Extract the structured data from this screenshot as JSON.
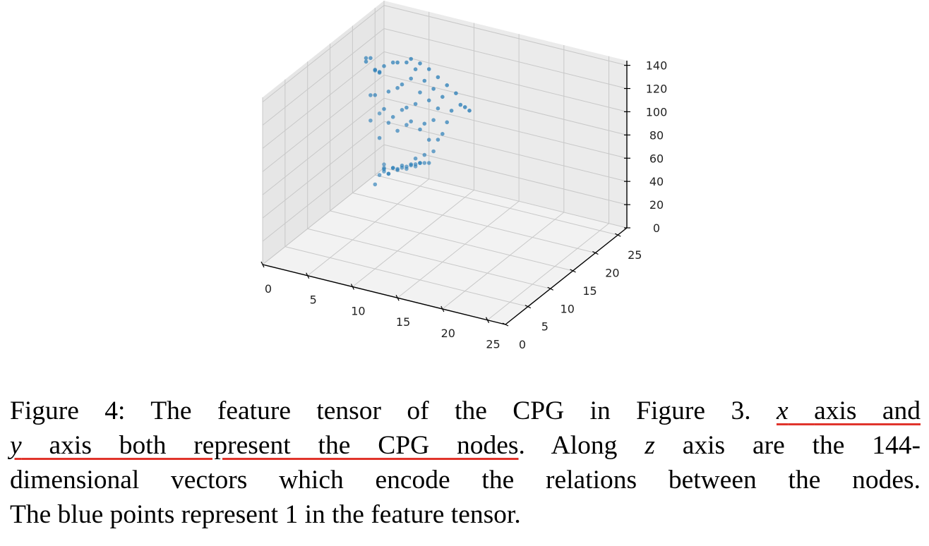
{
  "figure": {
    "caption": {
      "fig_label": "Figure 4:",
      "sentence1": "The feature tensor of the CPG in Figure 3.",
      "x_var": "x",
      "x_rest": "axis and",
      "y_var": "y",
      "y_rest": "axis both represent the CPG nodes",
      "period": ".",
      "along": "Along",
      "z_var": "z",
      "line2_end": "axis are the 144-",
      "line3": "dimensional vectors which encode the relations between the nodes.",
      "line4": "The blue points represent 1 in the feature tensor.",
      "underline_color": "#e0342c"
    }
  },
  "chart_data": {
    "type": "scatter",
    "projection": "3d",
    "title": "",
    "xlabel": "",
    "ylabel": "",
    "zlabel": "",
    "xlim": [
      0,
      27
    ],
    "ylim": [
      0,
      27
    ],
    "zlim": [
      0,
      144
    ],
    "x_ticks": [
      0,
      5,
      10,
      15,
      20,
      25
    ],
    "y_ticks": [
      0,
      5,
      10,
      15,
      20,
      25
    ],
    "z_ticks": [
      0,
      20,
      40,
      60,
      80,
      100,
      120,
      140
    ],
    "grid": true,
    "point_color": "#1f77b4",
    "series": [
      {
        "points": [
          [
            0,
            27,
            0
          ],
          [
            0,
            27,
            3
          ],
          [
            0,
            26,
            50
          ],
          [
            0,
            26,
            85
          ],
          [
            0,
            25,
            90
          ],
          [
            0,
            24,
            50
          ],
          [
            1,
            26,
            0
          ],
          [
            1,
            25,
            5
          ],
          [
            1,
            24,
            5
          ],
          [
            1,
            23,
            0
          ],
          [
            1,
            22,
            80
          ],
          [
            1,
            21,
            115
          ],
          [
            2,
            26,
            5
          ],
          [
            2,
            25,
            10
          ],
          [
            2,
            24,
            8
          ],
          [
            2,
            23,
            15
          ],
          [
            2,
            22,
            45
          ],
          [
            2,
            21,
            85
          ],
          [
            2,
            20,
            120
          ],
          [
            2,
            19,
            120
          ],
          [
            3,
            26,
            8
          ],
          [
            3,
            25,
            12
          ],
          [
            3,
            24,
            14
          ],
          [
            3,
            23,
            18
          ],
          [
            3,
            22,
            60
          ],
          [
            3,
            21,
            75
          ],
          [
            3,
            20,
            110
          ],
          [
            3,
            19,
            115
          ],
          [
            4,
            26,
            12
          ],
          [
            4,
            25,
            16
          ],
          [
            4,
            24,
            18
          ],
          [
            4,
            23,
            22
          ],
          [
            4,
            22,
            55
          ],
          [
            4,
            21,
            70
          ],
          [
            4,
            20,
            95
          ],
          [
            4,
            19,
            120
          ],
          [
            5,
            25,
            20
          ],
          [
            5,
            24,
            22
          ],
          [
            5,
            23,
            25
          ],
          [
            5,
            22,
            62
          ],
          [
            5,
            21,
            78
          ],
          [
            5,
            20,
            100
          ],
          [
            5,
            19,
            125
          ],
          [
            6,
            24,
            25
          ],
          [
            6,
            23,
            28
          ],
          [
            6,
            22,
            35
          ],
          [
            6,
            21,
            70
          ],
          [
            6,
            20,
            85
          ],
          [
            6,
            19,
            108
          ],
          [
            6,
            18,
            130
          ],
          [
            7,
            23,
            30
          ],
          [
            7,
            22,
            40
          ],
          [
            7,
            21,
            65
          ],
          [
            7,
            20,
            90
          ],
          [
            7,
            19,
            115
          ],
          [
            7,
            18,
            132
          ],
          [
            8,
            22,
            45
          ],
          [
            8,
            21,
            58
          ],
          [
            8,
            20,
            75
          ],
          [
            8,
            19,
            105
          ],
          [
            8,
            18,
            128
          ],
          [
            8,
            17,
            140
          ],
          [
            9,
            21,
            60
          ],
          [
            9,
            20,
            80
          ],
          [
            9,
            19,
            100
          ],
          [
            9,
            18,
            120
          ],
          [
            9,
            17,
            138
          ],
          [
            10,
            20,
            70
          ],
          [
            10,
            19,
            95
          ],
          [
            10,
            18,
            115
          ],
          [
            10,
            17,
            135
          ],
          [
            11,
            19,
            85
          ],
          [
            11,
            18,
            110
          ],
          [
            11,
            17,
            130
          ],
          [
            12,
            18,
            100
          ],
          [
            12,
            17,
            125
          ],
          [
            13,
            17,
            120
          ],
          [
            14,
            16,
            115
          ],
          [
            15,
            15,
            118
          ],
          [
            16,
            14,
            120
          ]
        ]
      }
    ]
  }
}
